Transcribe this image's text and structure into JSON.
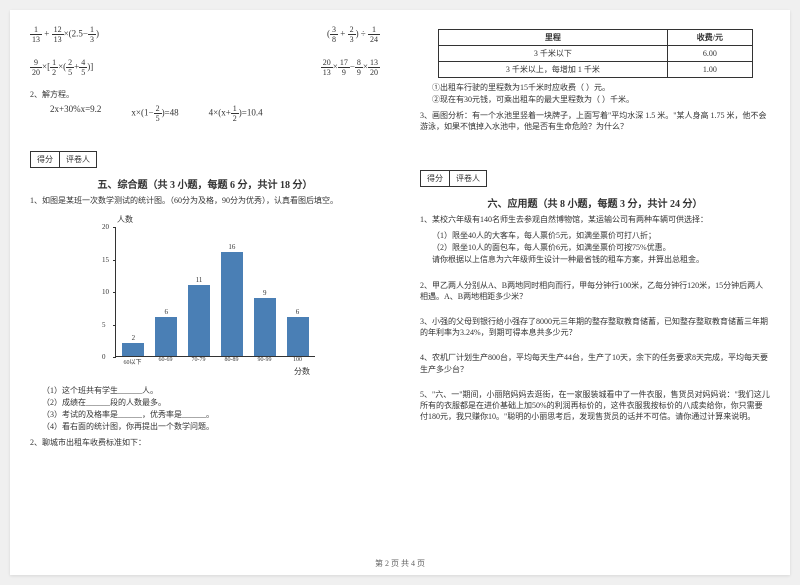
{
  "left": {
    "formulas": {
      "f1": "1/13 + 12/13 × (2.5 − 1/3)",
      "f2": "(3/8 + 2/3) ÷ 1/24",
      "f3": "9/20 × [1/2 × (2/5 + 4/5)]",
      "f4": "20/13 × 17/9 − 8/9 × 13/20",
      "eq_title": "2、解方程。",
      "eq1": "2x+30%x=9.2",
      "eq2": "x × (1 − 2/5) = 48",
      "eq3": "4 × (x + 1/2) = 10.4"
    },
    "score_labels": [
      "得分",
      "评卷人"
    ],
    "section5": "五、综合题（共 3 小题，每题 6 分，共计 18 分）",
    "q1": "1、如图是某班一次数学测试的统计图。（60分为及格，90分为优秀），认真看图后填空。",
    "chart": {
      "type": "bar",
      "y_title": "人数",
      "x_title": "分数",
      "categories": [
        "60以下",
        "60-69",
        "70-79",
        "80-89",
        "90-99",
        "100"
      ],
      "values": [
        2,
        6,
        11,
        16,
        9,
        6
      ],
      "ymax": 20,
      "ytick_step": 5,
      "bar_color": "#4a7fb5",
      "label_fontsize": 7
    },
    "sub1": "（1）这个班共有学生______人。",
    "sub2": "（2）成绩在______段的人数最多。",
    "sub3": "（3）考试的及格率是______，优秀率是______。",
    "sub4": "（4）看右面的统计图，你再提出一个数学问题。",
    "q2": "2、聊城市出租车收费标准如下："
  },
  "right": {
    "table": {
      "headers": [
        "里程",
        "收费/元"
      ],
      "rows": [
        [
          "3 千米以下",
          "6.00"
        ],
        [
          "3 千米以上，每增加 1 千米",
          "1.00"
        ]
      ]
    },
    "t1": "①出租车行驶的里程数为15千米时应收费（        ）元。",
    "t2": "②现在有30元钱，可乘出租车的最大里程数为（        ）千米。",
    "q3": "3、画图分析：有一个水池里竖着一块牌子，上面写着\"平均水深 1.5 米。\"某人身高 1.75 米，他不会游泳，如果不慎掉入水池中，他是否有生命危险？为什么？",
    "score_labels": [
      "得分",
      "评卷人"
    ],
    "section6": "六、应用题（共 8 小题，每题 3 分，共计 24 分）",
    "a1": "1、某校六年级有140名师生去参观自然博物馆，某运输公司有两种车辆可供选择：",
    "a1_1": "（1）限坐40人的大客车，每人票价5元，如满坐票价可打八折；",
    "a1_2": "（2）限坐10人的面包车，每人票价6元，如满坐票价可按75%优惠。",
    "a1_3": "请你根据以上信息为六年级师生设计一种最省钱的租车方案，并算出总租金。",
    "a2": "2、甲乙两人分别从A、B两地同时相向而行，甲每分钟行100米，乙每分钟行120米，15分钟后两人相遇。A、B两地相距多少米？",
    "a3": "3、小强的父母到银行给小强存了8000元三年期的整存整取教育储蓄，已知整存整取教育储蓄三年期的年利率为3.24%，到期可得本息共多少元？",
    "a4": "4、农机厂计划生产800台，平均每天生产44台，生产了10天，余下的任务要求8天完成，平均每天要生产多少台？",
    "a5": "5、\"六、一\"期间，小丽陪妈妈去逛街，在一家服装城看中了一件衣服，售货员对妈妈说：\"我们这儿所有的衣服都是在进价基础上加50%的利润再标价的，这件衣服我按标价的八成卖给你，你只需要付180元，我只赚你10。\"聪明的小丽思考后，发现售货员的话并不可信。请你通过计算来说明。"
  },
  "footer": "第 2 页 共 4 页"
}
